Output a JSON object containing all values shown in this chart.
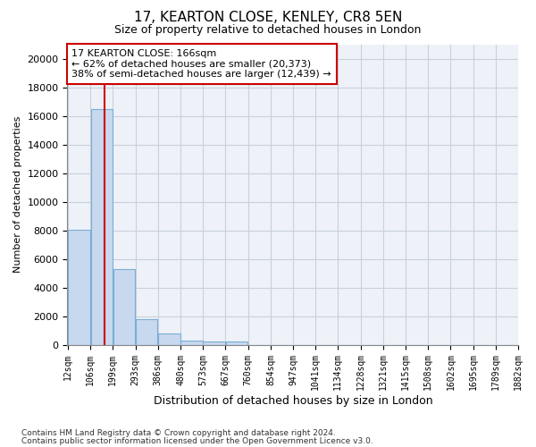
{
  "title1": "17, KEARTON CLOSE, KENLEY, CR8 5EN",
  "title2": "Size of property relative to detached houses in London",
  "xlabel": "Distribution of detached houses by size in London",
  "ylabel": "Number of detached properties",
  "bar_color": "#c8d8ee",
  "bar_edge_color": "#7aaed4",
  "bar_left_edges": [
    12,
    106,
    199,
    293,
    386,
    480,
    573,
    667,
    760,
    854,
    947,
    1041,
    1134,
    1228,
    1321,
    1415,
    1508,
    1602,
    1695,
    1789
  ],
  "bar_widths": [
    94,
    93,
    94,
    93,
    94,
    93,
    94,
    93,
    94,
    93,
    94,
    93,
    94,
    93,
    94,
    93,
    94,
    93,
    94,
    93
  ],
  "bar_heights": [
    8050,
    16500,
    5300,
    1800,
    800,
    300,
    200,
    200,
    0,
    0,
    0,
    0,
    0,
    0,
    0,
    0,
    0,
    0,
    0,
    0
  ],
  "tick_labels": [
    "12sqm",
    "106sqm",
    "199sqm",
    "293sqm",
    "386sqm",
    "480sqm",
    "573sqm",
    "667sqm",
    "760sqm",
    "854sqm",
    "947sqm",
    "1041sqm",
    "1134sqm",
    "1228sqm",
    "1321sqm",
    "1415sqm",
    "1508sqm",
    "1602sqm",
    "1695sqm",
    "1789sqm",
    "1882sqm"
  ],
  "vline_x": 166,
  "vline_color": "#cc0000",
  "annotation_text": "17 KEARTON CLOSE: 166sqm\n← 62% of detached houses are smaller (20,373)\n38% of semi-detached houses are larger (12,439) →",
  "annotation_box_color": "#cc0000",
  "ylim": [
    0,
    21000
  ],
  "yticks": [
    0,
    2000,
    4000,
    6000,
    8000,
    10000,
    12000,
    14000,
    16000,
    18000,
    20000
  ],
  "grid_color": "#c8d0dc",
  "bg_color": "#eef2f8",
  "outer_bg": "#ffffff",
  "footer1": "Contains HM Land Registry data © Crown copyright and database right 2024.",
  "footer2": "Contains public sector information licensed under the Open Government Licence v3.0."
}
